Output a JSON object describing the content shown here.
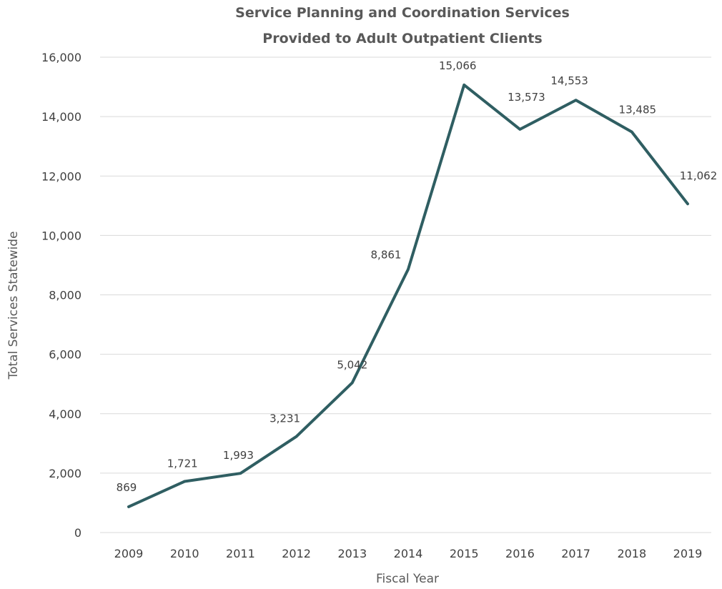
{
  "chart_data": {
    "type": "line",
    "title": "Service Planning and Coordination Services",
    "subtitle": "Provided to Adult Outpatient Clients",
    "xlabel": "Fiscal Year",
    "ylabel": "Total Services Statewide",
    "categories": [
      "2009",
      "2010",
      "2011",
      "2012",
      "2013",
      "2014",
      "2015",
      "2016",
      "2017",
      "2018",
      "2019"
    ],
    "series": [
      {
        "values": [
          869,
          1721,
          1993,
          3231,
          5042,
          8861,
          15066,
          13573,
          14553,
          13485,
          11062
        ],
        "data_labels": [
          "869",
          "1,721",
          "1,993",
          "3,231",
          "5,042",
          "8,861",
          "15,066",
          "13,573",
          "14,553",
          "13,485",
          "11,062"
        ]
      }
    ],
    "ylim": [
      0,
      16000
    ],
    "yticks": [
      0,
      2000,
      4000,
      6000,
      8000,
      10000,
      12000,
      14000,
      16000
    ],
    "ytick_labels": [
      "0",
      "2,000",
      "4,000",
      "6,000",
      "8,000",
      "10,000",
      "12,000",
      "14,000",
      "16,000"
    ],
    "grid": true,
    "legend": "none",
    "colors": {
      "line": "#2f5e62",
      "grid": "#d9d9d9",
      "text": "#404040"
    }
  }
}
